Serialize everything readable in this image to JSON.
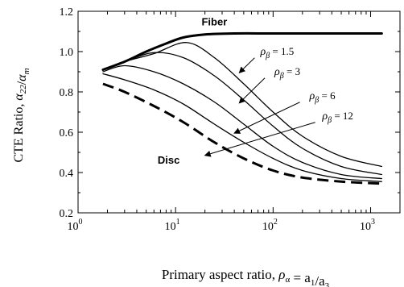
{
  "chart_data": {
    "type": "line",
    "xlabel": "Primary aspect ratio, ρα = a1/a3",
    "ylabel": "CTE Ratio, α22/αm",
    "xscale": "log",
    "xlim": [
      1,
      2000
    ],
    "ylim": [
      0.2,
      1.2
    ],
    "grid": false,
    "x_ticks": [
      {
        "value": 1,
        "base": "10",
        "exp": "0"
      },
      {
        "value": 10,
        "base": "10",
        "exp": "1"
      },
      {
        "value": 100,
        "base": "10",
        "exp": "2"
      },
      {
        "value": 1000,
        "base": "10",
        "exp": "3"
      }
    ],
    "y_ticks": [
      {
        "value": 0.2,
        "label": "0.2"
      },
      {
        "value": 0.4,
        "label": "0.4"
      },
      {
        "value": 0.6,
        "label": "0.6"
      },
      {
        "value": 0.8,
        "label": "0.8"
      },
      {
        "value": 1.0,
        "label": "1.0"
      },
      {
        "value": 1.2,
        "label": "1.2"
      }
    ],
    "series": [
      {
        "name": "Fiber",
        "style": "thick",
        "x": [
          1.8,
          3,
          5,
          8,
          12,
          20,
          40,
          100,
          300,
          1300
        ],
        "y": [
          0.91,
          0.95,
          1.0,
          1.04,
          1.07,
          1.085,
          1.09,
          1.09,
          1.09,
          1.09
        ]
      },
      {
        "name": "ρβ = 1.5",
        "style": "thin",
        "x": [
          1.8,
          3,
          6,
          13,
          25,
          50,
          100,
          200,
          500,
          1300
        ],
        "y": [
          0.91,
          0.95,
          0.99,
          1.045,
          0.97,
          0.84,
          0.7,
          0.58,
          0.48,
          0.43
        ]
      },
      {
        "name": "ρβ = 3",
        "style": "thin",
        "x": [
          1.8,
          3,
          6,
          12,
          25,
          50,
          100,
          200,
          500,
          1300
        ],
        "y": [
          0.91,
          0.95,
          0.995,
          0.97,
          0.88,
          0.76,
          0.63,
          0.52,
          0.43,
          0.39
        ]
      },
      {
        "name": "ρβ = 6",
        "style": "thin",
        "x": [
          1.8,
          3,
          6,
          12,
          25,
          50,
          100,
          200,
          500,
          1300
        ],
        "y": [
          0.9,
          0.93,
          0.9,
          0.84,
          0.75,
          0.64,
          0.53,
          0.45,
          0.39,
          0.37
        ]
      },
      {
        "name": "ρβ = 12",
        "style": "thin",
        "x": [
          1.8,
          3,
          6,
          12,
          25,
          50,
          100,
          200,
          500,
          1300
        ],
        "y": [
          0.89,
          0.86,
          0.81,
          0.74,
          0.64,
          0.55,
          0.47,
          0.41,
          0.37,
          0.355
        ]
      },
      {
        "name": "Disc",
        "style": "dashed",
        "x": [
          1.8,
          3,
          6,
          12,
          25,
          50,
          100,
          200,
          500,
          1300
        ],
        "y": [
          0.84,
          0.8,
          0.73,
          0.65,
          0.55,
          0.47,
          0.41,
          0.375,
          0.355,
          0.345
        ]
      }
    ],
    "annotations": [
      {
        "text": "Fiber",
        "kind": "bold",
        "x": 25,
        "y": 1.13
      },
      {
        "text": "Disc",
        "kind": "bold",
        "x": 8.5,
        "y": 0.445
      },
      {
        "base": "ρ",
        "sub": "β",
        "rest": " = 1.5",
        "kind": "rho",
        "x": 110,
        "y": 0.985,
        "arrow_to": [
          45,
          0.895
        ]
      },
      {
        "base": "ρ",
        "sub": "β",
        "rest": " = 3",
        "kind": "rho",
        "x": 140,
        "y": 0.885,
        "arrow_to": [
          45,
          0.745
        ]
      },
      {
        "base": "ρ",
        "sub": "β",
        "rest": " = 6",
        "kind": "rho",
        "x": 320,
        "y": 0.765,
        "arrow_to": [
          40,
          0.595
        ]
      },
      {
        "base": "ρ",
        "sub": "β",
        "rest": " = 12",
        "kind": "rho",
        "x": 460,
        "y": 0.665,
        "arrow_to": [
          20,
          0.485
        ]
      }
    ]
  }
}
